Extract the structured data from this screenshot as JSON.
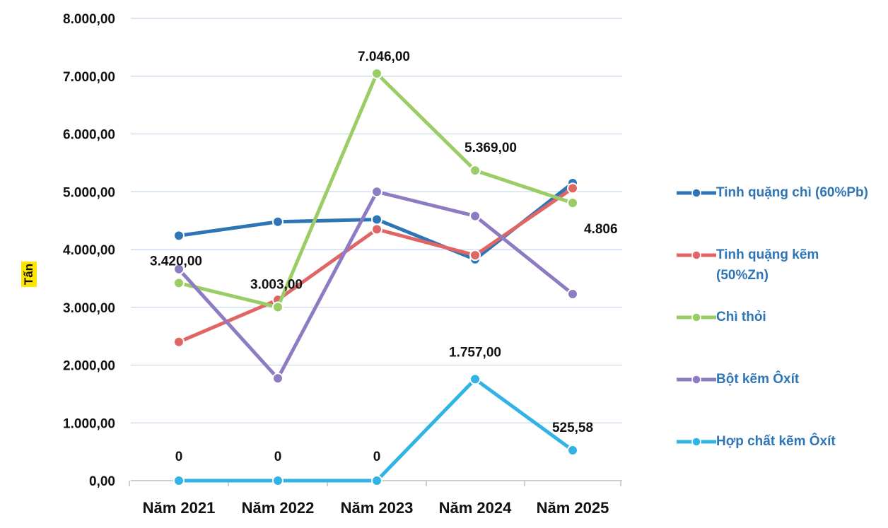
{
  "chart_data": {
    "type": "line",
    "categories": [
      "Năm 2021",
      "Năm 2022",
      "Năm 2023",
      "Năm 2024",
      "Năm 2025"
    ],
    "ylabel": "Tấn",
    "ylim": [
      0,
      8000
    ],
    "y_ticks": [
      "0,00",
      "1.000,00",
      "2.000,00",
      "3.000,00",
      "4.000,00",
      "5.000,00",
      "6.000,00",
      "7.000,00",
      "8.000,00"
    ],
    "grid": true,
    "legend_position": "right",
    "series": [
      {
        "name": "Tinh quặng chì (60%Pb)",
        "color": "#2e75b6",
        "values": [
          4240,
          4480,
          4520,
          3830,
          5150
        ]
      },
      {
        "name": "Tinh quặng kẽm (50%Zn)",
        "color": "#e06666",
        "values": [
          2400,
          3130,
          4350,
          3900,
          5060
        ]
      },
      {
        "name": "Chì thỏi",
        "color": "#9bcd66",
        "values": [
          3420,
          3003,
          7046,
          5369,
          4806
        ],
        "data_labels": [
          "3.420,00",
          "3.003,00",
          "7.046,00",
          "5.369,00",
          "4.806"
        ]
      },
      {
        "name": "Bột kẽm Ôxít",
        "color": "#8e7cc3",
        "values": [
          3660,
          1770,
          5000,
          4580,
          3230
        ]
      },
      {
        "name": "Hợp chất kẽm Ôxít",
        "color": "#31b3e6",
        "values": [
          0,
          0,
          0,
          1757,
          525.58
        ],
        "data_labels": [
          "0",
          "0",
          "0",
          "1.757,00",
          "525,58"
        ]
      }
    ]
  }
}
